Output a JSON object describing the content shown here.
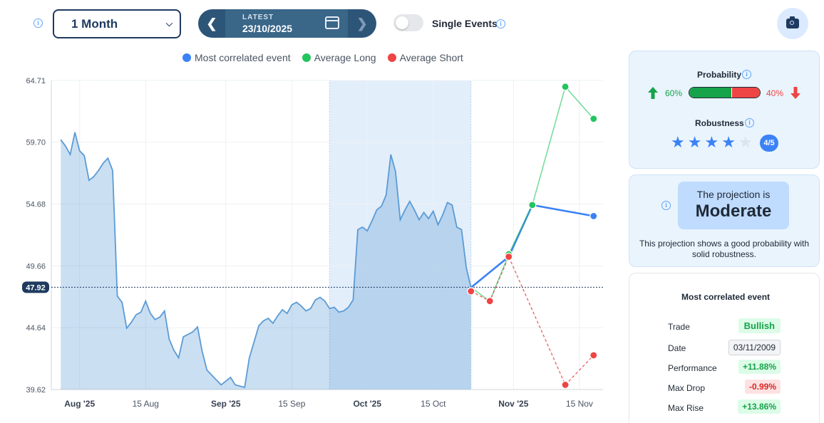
{
  "toolbar": {
    "period_value": "1 Month",
    "date_nav_label": "LATEST",
    "date_nav_date": "23/10/2025",
    "single_events_label": "Single Events",
    "single_events_on": false
  },
  "legend": [
    {
      "label": "Most correlated event",
      "color": "#3b82f6"
    },
    {
      "label": "Average Long",
      "color": "#22c55e"
    },
    {
      "label": "Average Short",
      "color": "#ef4444"
    }
  ],
  "chart_data": {
    "type": "area",
    "y_ticks": [
      "64.71",
      "59.70",
      "54.68",
      "49.66",
      "44.64",
      "39.62"
    ],
    "ylim": [
      39.62,
      64.71
    ],
    "current_value": "47.92",
    "x_ticks": [
      {
        "label": "Aug '25",
        "date": "2025-08-01",
        "bold": true
      },
      {
        "label": "15 Aug",
        "date": "2025-08-15",
        "bold": false
      },
      {
        "label": "Sep '25",
        "date": "2025-09-01",
        "bold": true
      },
      {
        "label": "15 Sep",
        "date": "2025-09-15",
        "bold": false
      },
      {
        "label": "Oct '25",
        "date": "2025-10-01",
        "bold": true
      },
      {
        "label": "15 Oct",
        "date": "2025-10-15",
        "bold": false
      },
      {
        "label": "Nov '25",
        "date": "2025-11-01",
        "bold": true
      },
      {
        "label": "15 Nov",
        "date": "2025-11-15",
        "bold": false
      }
    ],
    "highlight_range": [
      "2025-09-23",
      "2025-10-23"
    ],
    "series": [
      {
        "name": "Price",
        "color": "#5b9bd5",
        "points": [
          [
            "2025-07-28",
            59.9
          ],
          [
            "2025-07-29",
            59.4
          ],
          [
            "2025-07-30",
            58.7
          ],
          [
            "2025-07-31",
            60.5
          ],
          [
            "2025-08-01",
            59.0
          ],
          [
            "2025-08-02",
            58.6
          ],
          [
            "2025-08-03",
            56.6
          ],
          [
            "2025-08-04",
            56.9
          ],
          [
            "2025-08-05",
            57.4
          ],
          [
            "2025-08-06",
            58.0
          ],
          [
            "2025-08-07",
            58.4
          ],
          [
            "2025-08-08",
            57.4
          ],
          [
            "2025-08-09",
            47.2
          ],
          [
            "2025-08-10",
            46.7
          ],
          [
            "2025-08-11",
            44.6
          ],
          [
            "2025-08-12",
            45.1
          ],
          [
            "2025-08-13",
            45.7
          ],
          [
            "2025-08-14",
            45.9
          ],
          [
            "2025-08-15",
            46.8
          ],
          [
            "2025-08-16",
            45.8
          ],
          [
            "2025-08-17",
            45.3
          ],
          [
            "2025-08-18",
            45.5
          ],
          [
            "2025-08-19",
            46.0
          ],
          [
            "2025-08-20",
            43.7
          ],
          [
            "2025-08-21",
            42.8
          ],
          [
            "2025-08-22",
            42.2
          ],
          [
            "2025-08-23",
            43.9
          ],
          [
            "2025-08-24",
            44.1
          ],
          [
            "2025-08-25",
            44.3
          ],
          [
            "2025-08-26",
            44.7
          ],
          [
            "2025-08-27",
            42.7
          ],
          [
            "2025-08-28",
            41.2
          ],
          [
            "2025-08-29",
            40.8
          ],
          [
            "2025-08-30",
            40.4
          ],
          [
            "2025-08-31",
            40.0
          ],
          [
            "2025-09-01",
            40.3
          ],
          [
            "2025-09-02",
            40.6
          ],
          [
            "2025-09-03",
            40.0
          ],
          [
            "2025-09-04",
            39.9
          ],
          [
            "2025-09-05",
            39.8
          ],
          [
            "2025-09-06",
            42.2
          ],
          [
            "2025-09-07",
            43.5
          ],
          [
            "2025-09-08",
            44.8
          ],
          [
            "2025-09-09",
            45.2
          ],
          [
            "2025-09-10",
            45.4
          ],
          [
            "2025-09-11",
            45.0
          ],
          [
            "2025-09-12",
            45.6
          ],
          [
            "2025-09-13",
            46.1
          ],
          [
            "2025-09-14",
            45.8
          ],
          [
            "2025-09-15",
            46.5
          ],
          [
            "2025-09-16",
            46.7
          ],
          [
            "2025-09-17",
            46.4
          ],
          [
            "2025-09-18",
            46.0
          ],
          [
            "2025-09-19",
            46.2
          ],
          [
            "2025-09-20",
            46.9
          ],
          [
            "2025-09-21",
            47.1
          ],
          [
            "2025-09-22",
            46.8
          ],
          [
            "2025-09-23",
            46.2
          ],
          [
            "2025-09-24",
            46.3
          ],
          [
            "2025-09-25",
            45.9
          ],
          [
            "2025-09-26",
            46.0
          ],
          [
            "2025-09-27",
            46.3
          ],
          [
            "2025-09-28",
            46.9
          ],
          [
            "2025-09-29",
            52.6
          ],
          [
            "2025-09-30",
            52.8
          ],
          [
            "2025-10-01",
            52.5
          ],
          [
            "2025-10-02",
            53.3
          ],
          [
            "2025-10-03",
            54.2
          ],
          [
            "2025-10-04",
            54.5
          ],
          [
            "2025-10-05",
            55.4
          ],
          [
            "2025-10-06",
            58.7
          ],
          [
            "2025-10-07",
            57.3
          ],
          [
            "2025-10-08",
            53.4
          ],
          [
            "2025-10-09",
            54.2
          ],
          [
            "2025-10-10",
            54.9
          ],
          [
            "2025-10-11",
            54.2
          ],
          [
            "2025-10-12",
            53.4
          ],
          [
            "2025-10-13",
            54.0
          ],
          [
            "2025-10-14",
            53.5
          ],
          [
            "2025-10-15",
            54.1
          ],
          [
            "2025-10-16",
            53.0
          ],
          [
            "2025-10-17",
            53.8
          ],
          [
            "2025-10-18",
            54.8
          ],
          [
            "2025-10-19",
            54.6
          ],
          [
            "2025-10-20",
            52.8
          ],
          [
            "2025-10-21",
            52.6
          ],
          [
            "2025-10-22",
            49.5
          ],
          [
            "2025-10-23",
            47.9
          ]
        ]
      },
      {
        "name": "Most correlated event",
        "color": "#3b82f6",
        "points": [
          [
            "2025-10-23",
            47.9
          ],
          [
            "2025-10-31",
            50.4
          ],
          [
            "2025-11-05",
            54.6
          ],
          [
            "2025-11-18",
            53.7
          ]
        ]
      },
      {
        "name": "Average Long",
        "color": "#22c55e",
        "points": [
          [
            "2025-10-23",
            47.9
          ],
          [
            "2025-10-27",
            46.8
          ],
          [
            "2025-10-31",
            50.6
          ],
          [
            "2025-11-05",
            54.6
          ],
          [
            "2025-11-12",
            64.2
          ],
          [
            "2025-11-18",
            61.6
          ]
        ]
      },
      {
        "name": "Average Short",
        "color": "#ef4444",
        "points": [
          [
            "2025-10-23",
            47.6
          ],
          [
            "2025-10-27",
            46.8
          ],
          [
            "2025-10-31",
            50.4
          ],
          [
            "2025-11-12",
            40.0
          ],
          [
            "2025-11-18",
            42.4
          ]
        ]
      }
    ]
  },
  "probability": {
    "title": "Probability",
    "long_pct": "60%",
    "short_pct": "40%",
    "long_fraction": 0.6,
    "long_color": "#16a34a",
    "short_color": "#ef4444"
  },
  "robustness": {
    "title": "Robustness",
    "score": 4,
    "max": 5,
    "badge": "4/5"
  },
  "projection": {
    "line1": "The projection is",
    "line2": "Moderate",
    "description": "This projection shows a good probability with solid robustness."
  },
  "event": {
    "title": "Most correlated event",
    "rows": [
      {
        "label": "Trade",
        "value": "Bullish",
        "style": "green"
      },
      {
        "label": "Date",
        "value": "03/11/2009",
        "style": "neutral"
      },
      {
        "label": "Performance",
        "value": "+11.88%",
        "style": "green"
      },
      {
        "label": "Max Drop",
        "value": "-0.99%",
        "style": "red"
      },
      {
        "label": "Max Rise",
        "value": "+13.86%",
        "style": "green"
      }
    ]
  }
}
